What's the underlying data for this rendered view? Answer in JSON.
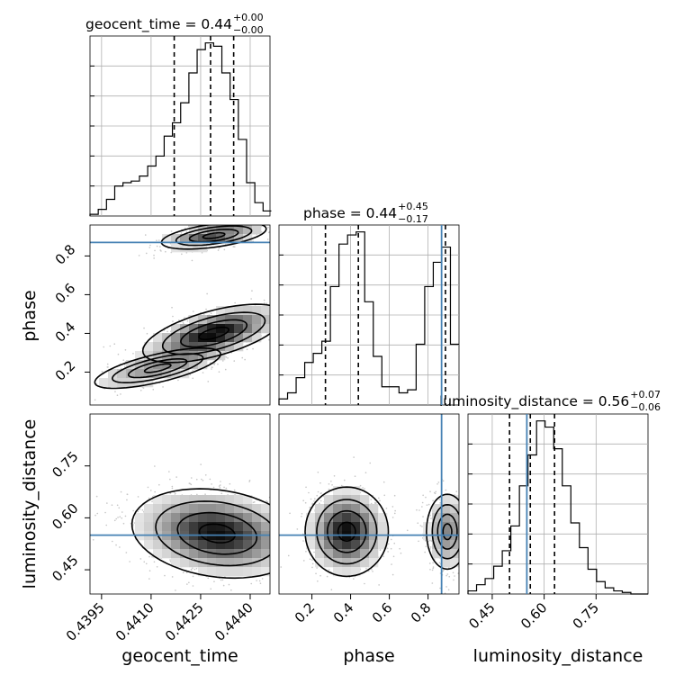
{
  "chart_data": {
    "type": "corner",
    "parameters": [
      "geocent_time",
      "phase",
      "luminosity_distance"
    ],
    "axis_labels": {
      "x": [
        "geocent_time",
        "phase",
        "luminosity_distance"
      ],
      "y": [
        "phase",
        "luminosity_distance"
      ]
    },
    "ranges": {
      "geocent_time": [
        0.43915,
        0.4446
      ],
      "phase": [
        0.03,
        0.96
      ],
      "luminosity_distance": [
        0.38,
        0.9
      ]
    },
    "truth": {
      "phase": 0.87,
      "luminosity_distance": 0.55
    },
    "ticks": {
      "geocent_time": [
        "0.4395",
        "0.4410",
        "0.4425",
        "0.4440"
      ],
      "phase": [
        "0.2",
        "0.4",
        "0.6",
        "0.8"
      ],
      "luminosity_distance": [
        "0.45",
        "0.60",
        "0.75"
      ]
    },
    "tick_values": {
      "geocent_time": [
        0.4395,
        0.441,
        0.4425,
        0.444
      ],
      "phase": [
        0.2,
        0.4,
        0.6,
        0.8
      ],
      "luminosity_distance": [
        0.45,
        0.6,
        0.75
      ]
    },
    "titles": [
      {
        "param": "geocent_time",
        "main": "geocent_time = 0.44",
        "plus": "+0.00",
        "minus": "−0.00"
      },
      {
        "param": "phase",
        "main": "phase = 0.44",
        "plus": "+0.45",
        "minus": "−0.17"
      },
      {
        "param": "luminosity_distance",
        "main": "luminosity_distance = 0.56",
        "plus": "+0.07",
        "minus": "−0.06"
      }
    ],
    "quantiles": {
      "geocent_time": [
        0.4417,
        0.4428,
        0.4435
      ],
      "phase": [
        0.27,
        0.44,
        0.89
      ],
      "luminosity_distance": [
        0.5,
        0.56,
        0.63
      ]
    },
    "histograms": {
      "geocent_time": {
        "edges": [
          0.43915,
          0.44464
        ],
        "counts": [
          0.5,
          2,
          5,
          9,
          10,
          10.5,
          12,
          15,
          18,
          24,
          28,
          34,
          43,
          50,
          52,
          51,
          43,
          35,
          23,
          10,
          4,
          1.5
        ]
      },
      "phase": {
        "edges": [
          0.03,
          0.96
        ],
        "counts": [
          2,
          4,
          9,
          14,
          17,
          21,
          39,
          53,
          56,
          57,
          34,
          16,
          6,
          6,
          4,
          5,
          20,
          39,
          47,
          52,
          20
        ]
      },
      "luminosity_distance": {
        "edges": [
          0.38,
          0.9
        ],
        "counts": [
          1,
          3,
          5,
          9,
          14,
          22,
          35,
          45,
          56,
          54,
          47,
          35,
          23,
          15,
          8,
          4,
          2,
          1,
          0.5,
          0,
          0
        ]
      }
    },
    "grid": true,
    "colors": {
      "truth": "#4682b4",
      "contour": "#000000",
      "hist": "#000000"
    }
  }
}
